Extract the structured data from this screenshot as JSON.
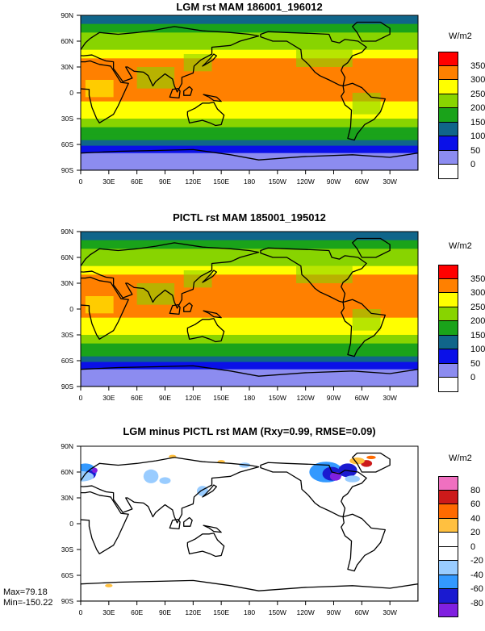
{
  "chart_data": [
    {
      "type": "heatmap",
      "title": "LGM rst MAM 186001_196012",
      "units": "W/m2",
      "xticks": [
        "0",
        "30E",
        "60E",
        "90E",
        "120E",
        "150E",
        "180",
        "150W",
        "120W",
        "90W",
        "60W",
        "30W"
      ],
      "yticks": [
        "90N",
        "60N",
        "30N",
        "0",
        "30S",
        "60S",
        "90S"
      ],
      "levels": [
        "350",
        "300",
        "250",
        "200",
        "150",
        "100",
        "50",
        "0"
      ],
      "colors": [
        "#ff0000",
        "#ff8000",
        "#ffff00",
        "#88d400",
        "#1aa31a",
        "#10658a",
        "#0a10e8",
        "#8c8cf0",
        "#ffffff"
      ],
      "lat_bands": [
        {
          "lat": 85,
          "value": 120
        },
        {
          "lat": 75,
          "value": 175
        },
        {
          "lat": 65,
          "value": 210
        },
        {
          "lat": 55,
          "value": 240
        },
        {
          "lat": 45,
          "value": 270
        },
        {
          "lat": 35,
          "value": 300
        },
        {
          "lat": 25,
          "value": 315
        },
        {
          "lat": 15,
          "value": 320
        },
        {
          "lat": 5,
          "value": 305
        },
        {
          "lat": -5,
          "value": 300
        },
        {
          "lat": -15,
          "value": 285
        },
        {
          "lat": -25,
          "value": 265
        },
        {
          "lat": -35,
          "value": 235
        },
        {
          "lat": -45,
          "value": 195
        },
        {
          "lat": -52,
          "value": 165
        },
        {
          "lat": -58,
          "value": 120
        },
        {
          "lat": -65,
          "value": 60
        },
        {
          "lat": -75,
          "value": 30
        },
        {
          "lat": -85,
          "value": 20
        }
      ]
    },
    {
      "type": "heatmap",
      "title": "PICTL rst MAM 185001_195012",
      "units": "W/m2",
      "xticks": [
        "0",
        "30E",
        "60E",
        "90E",
        "120E",
        "150E",
        "180",
        "150W",
        "120W",
        "90W",
        "60W",
        "30W"
      ],
      "yticks": [
        "90N",
        "60N",
        "30N",
        "0",
        "30S",
        "60S",
        "90S"
      ],
      "levels": [
        "350",
        "300",
        "250",
        "200",
        "150",
        "100",
        "50",
        "0"
      ],
      "colors": [
        "#ff0000",
        "#ff8000",
        "#ffff00",
        "#88d400",
        "#1aa31a",
        "#10658a",
        "#0a10e8",
        "#8c8cf0",
        "#ffffff"
      ],
      "lat_bands": [
        {
          "lat": 85,
          "value": 120
        },
        {
          "lat": 75,
          "value": 175
        },
        {
          "lat": 65,
          "value": 215
        },
        {
          "lat": 55,
          "value": 245
        },
        {
          "lat": 45,
          "value": 275
        },
        {
          "lat": 35,
          "value": 300
        },
        {
          "lat": 25,
          "value": 315
        },
        {
          "lat": 15,
          "value": 320
        },
        {
          "lat": 5,
          "value": 305
        },
        {
          "lat": -5,
          "value": 300
        },
        {
          "lat": -15,
          "value": 285
        },
        {
          "lat": -25,
          "value": 265
        },
        {
          "lat": -35,
          "value": 235
        },
        {
          "lat": -45,
          "value": 195
        },
        {
          "lat": -52,
          "value": 165
        },
        {
          "lat": -58,
          "value": 120
        },
        {
          "lat": -65,
          "value": 60
        },
        {
          "lat": -75,
          "value": 30
        },
        {
          "lat": -85,
          "value": 20
        }
      ]
    },
    {
      "type": "heatmap",
      "title": "LGM minus PICTL rst MAM (Rxy=0.99, RMSE=0.09)",
      "units": "W/m2",
      "xticks": [
        "0",
        "30E",
        "60E",
        "90E",
        "120E",
        "150E",
        "180",
        "150W",
        "120W",
        "90W",
        "60W",
        "30W"
      ],
      "yticks": [
        "90N",
        "60N",
        "30N",
        "0",
        "30S",
        "60S",
        "90S"
      ],
      "levels": [
        "80",
        "60",
        "40",
        "20",
        "0",
        "-20",
        "-40",
        "-60",
        "-80"
      ],
      "colors": [
        "#f070c0",
        "#cc1a1a",
        "#ff6a00",
        "#ffc040",
        "#ffffff",
        "#ffffff",
        "#99ccff",
        "#3399ff",
        "#1a1ad0",
        "#8020e0"
      ],
      "stats": {
        "max": "Max=79.18",
        "min": "Min=-150.22"
      }
    }
  ]
}
